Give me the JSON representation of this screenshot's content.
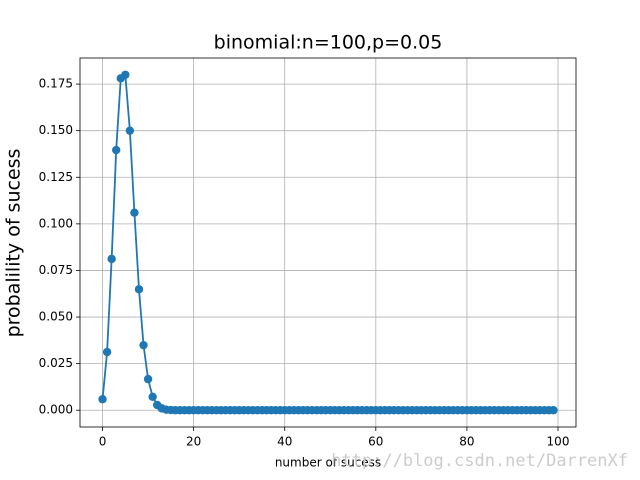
{
  "chart_data": {
    "type": "line",
    "title": "binomial:n=100,p=0.05",
    "x_label": "number of sucess",
    "y_label": "probalility of sucess",
    "watermark": "http://blog.csdn.net/DarrenXf",
    "x": [
      0,
      1,
      2,
      3,
      4,
      5,
      6,
      7,
      8,
      9,
      10,
      11,
      12,
      13,
      14,
      15,
      16,
      17,
      18,
      19,
      20,
      21,
      22,
      23,
      24,
      25,
      26,
      27,
      28,
      29,
      30,
      31,
      32,
      33,
      34,
      35,
      36,
      37,
      38,
      39,
      40,
      41,
      42,
      43,
      44,
      45,
      46,
      47,
      48,
      49,
      50,
      51,
      52,
      53,
      54,
      55,
      56,
      57,
      58,
      59,
      60,
      61,
      62,
      63,
      64,
      65,
      66,
      67,
      68,
      69,
      70,
      71,
      72,
      73,
      74,
      75,
      76,
      77,
      78,
      79,
      80,
      81,
      82,
      83,
      84,
      85,
      86,
      87,
      88,
      89,
      90,
      91,
      92,
      93,
      94,
      95,
      96,
      97,
      98,
      99
    ],
    "series": [
      {
        "color": "#1f77b4",
        "values": [
          0.0059,
          0.0312,
          0.0812,
          0.1396,
          0.1781,
          0.18,
          0.15,
          0.106,
          0.0649,
          0.0349,
          0.0167,
          0.0072,
          0.0028,
          0.001,
          0.0003,
          0.0001,
          0,
          0,
          0,
          0,
          0,
          0,
          0,
          0,
          0,
          0,
          0,
          0,
          0,
          0,
          0,
          0,
          0,
          0,
          0,
          0,
          0,
          0,
          0,
          0,
          0,
          0,
          0,
          0,
          0,
          0,
          0,
          0,
          0,
          0,
          0,
          0,
          0,
          0,
          0,
          0,
          0,
          0,
          0,
          0,
          0,
          0,
          0,
          0,
          0,
          0,
          0,
          0,
          0,
          0,
          0,
          0,
          0,
          0,
          0,
          0,
          0,
          0,
          0,
          0,
          0,
          0,
          0,
          0,
          0,
          0,
          0,
          0,
          0,
          0,
          0,
          0,
          0,
          0,
          0,
          0,
          0,
          0,
          0,
          0
        ]
      }
    ],
    "xlim": [
      -4.95,
      103.95
    ],
    "xticks": [
      0,
      20,
      40,
      60,
      80,
      100
    ],
    "ylim": [
      -0.009,
      0.189
    ],
    "yticks": [
      {
        "value": 0,
        "label": "0.000"
      },
      {
        "value": 0.025,
        "label": "0.025"
      },
      {
        "value": 0.05,
        "label": "0.050"
      },
      {
        "value": 0.075,
        "label": "0.075"
      },
      {
        "value": 0.1,
        "label": "0.100"
      },
      {
        "value": 0.125,
        "label": "0.125"
      },
      {
        "value": 0.15,
        "label": "0.150"
      },
      {
        "value": 0.175,
        "label": "0.175"
      }
    ],
    "grid": true
  }
}
